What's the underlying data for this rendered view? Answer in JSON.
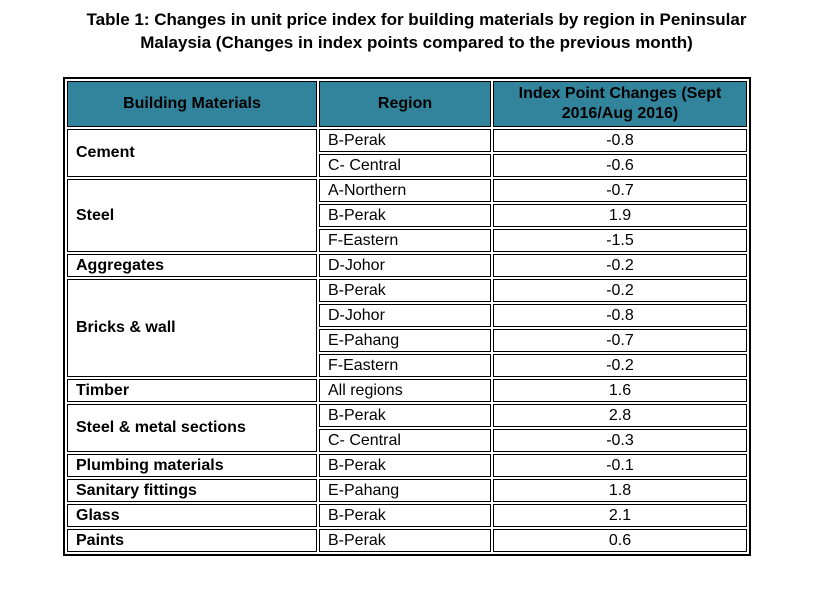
{
  "title": {
    "line1": "Table 1: Changes in unit price index for building materials by region in Peninsular",
    "line2": "Malaysia (Changes in index points compared to the previous month)"
  },
  "table": {
    "header_bg": "#31849B",
    "border_color": "#000000",
    "columns": [
      "Building Materials",
      "Region",
      "Index Point Changes (Sept 2016/Aug 2016)"
    ],
    "groups": [
      {
        "material": "Cement",
        "rows": [
          {
            "region": "B-Perak",
            "change": "-0.8"
          },
          {
            "region": "C- Central",
            "change": "-0.6"
          }
        ]
      },
      {
        "material": "Steel",
        "rows": [
          {
            "region": "A-Northern",
            "change": "-0.7"
          },
          {
            "region": "B-Perak",
            "change": "1.9"
          },
          {
            "region": "F-Eastern",
            "change": "-1.5"
          }
        ]
      },
      {
        "material": "Aggregates",
        "rows": [
          {
            "region": "D-Johor",
            "change": "-0.2"
          }
        ]
      },
      {
        "material": "Bricks & wall",
        "rows": [
          {
            "region": "B-Perak",
            "change": "-0.2"
          },
          {
            "region": "D-Johor",
            "change": "-0.8"
          },
          {
            "region": "E-Pahang",
            "change": "-0.7"
          },
          {
            "region": "F-Eastern",
            "change": "-0.2"
          }
        ]
      },
      {
        "material": "Timber",
        "rows": [
          {
            "region": "All regions",
            "change": "1.6"
          }
        ]
      },
      {
        "material": "Steel & metal sections",
        "rows": [
          {
            "region": "B-Perak",
            "change": "2.8"
          },
          {
            "region": "C- Central",
            "change": "-0.3"
          }
        ]
      },
      {
        "material": "Plumbing materials",
        "rows": [
          {
            "region": "B-Perak",
            "change": "-0.1"
          }
        ]
      },
      {
        "material": "Sanitary fittings",
        "rows": [
          {
            "region": "E-Pahang",
            "change": "1.8"
          }
        ]
      },
      {
        "material": "Glass",
        "rows": [
          {
            "region": "B-Perak",
            "change": "2.1"
          }
        ]
      },
      {
        "material": "Paints",
        "rows": [
          {
            "region": "B-Perak",
            "change": "0.6"
          }
        ]
      }
    ]
  }
}
